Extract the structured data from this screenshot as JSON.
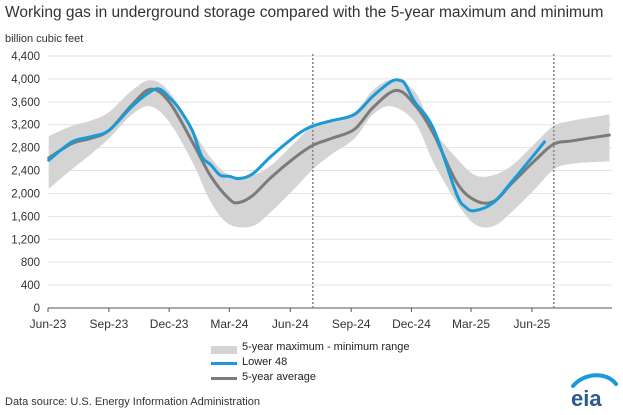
{
  "chart_data": {
    "type": "area",
    "title": "Working gas in underground  storage compared with the 5-year maximum and minimum",
    "ylabel": "billion cubic feet",
    "ylim": [
      0,
      4400
    ],
    "yticks": [
      0,
      400,
      800,
      1200,
      1600,
      2000,
      2400,
      2800,
      3200,
      3600,
      4000,
      4400
    ],
    "ytick_labels": [
      "0",
      "400",
      "800",
      "1,200",
      "1,600",
      "2,000",
      "2,400",
      "2,800",
      "3,200",
      "3,600",
      "4,000",
      "4,400"
    ],
    "xlim": [
      "2023-06-01",
      "2025-09-30"
    ],
    "xticks": [
      "2023-06-01",
      "2023-09-01",
      "2023-12-01",
      "2024-03-01",
      "2024-06-01",
      "2024-09-01",
      "2024-12-01",
      "2025-03-01",
      "2025-06-01"
    ],
    "xtick_labels": [
      "Jun-23",
      "Sep-23",
      "Dec-23",
      "Mar-24",
      "Jun-24",
      "Sep-24",
      "Dec-24",
      "Mar-25",
      "Jun-25"
    ],
    "grid": "horizontal",
    "legend_position": "bottom-center",
    "dashed_markers": [
      "2024-07-05",
      "2025-07-04"
    ],
    "series": [
      {
        "name": "5-year maximum - minimum range",
        "kind": "band",
        "color": "#d4d4d4",
        "points": [
          {
            "date": "2023-06-02",
            "low": 2080,
            "high": 3000
          },
          {
            "date": "2023-07-07",
            "low": 2420,
            "high": 3180
          },
          {
            "date": "2023-08-04",
            "low": 2680,
            "high": 3270
          },
          {
            "date": "2023-09-01",
            "low": 2960,
            "high": 3420
          },
          {
            "date": "2023-10-06",
            "low": 3380,
            "high": 3800
          },
          {
            "date": "2023-11-03",
            "low": 3520,
            "high": 3980
          },
          {
            "date": "2023-12-01",
            "low": 3250,
            "high": 3780
          },
          {
            "date": "2024-01-05",
            "low": 2550,
            "high": 3120
          },
          {
            "date": "2024-02-02",
            "low": 1850,
            "high": 2620
          },
          {
            "date": "2024-03-01",
            "low": 1460,
            "high": 2320
          },
          {
            "date": "2024-04-05",
            "low": 1430,
            "high": 2320
          },
          {
            "date": "2024-05-03",
            "low": 1680,
            "high": 2490
          },
          {
            "date": "2024-06-07",
            "low": 2080,
            "high": 2880
          },
          {
            "date": "2024-07-05",
            "low": 2420,
            "high": 3180
          },
          {
            "date": "2024-08-02",
            "low": 2680,
            "high": 3270
          },
          {
            "date": "2024-09-06",
            "low": 2960,
            "high": 3420
          },
          {
            "date": "2024-10-04",
            "low": 3380,
            "high": 3800
          },
          {
            "date": "2024-11-01",
            "low": 3520,
            "high": 3980
          },
          {
            "date": "2024-12-06",
            "low": 3250,
            "high": 3780
          },
          {
            "date": "2025-01-03",
            "low": 2550,
            "high": 3120
          },
          {
            "date": "2025-02-07",
            "low": 1850,
            "high": 2620
          },
          {
            "date": "2025-03-07",
            "low": 1460,
            "high": 2320
          },
          {
            "date": "2025-04-04",
            "low": 1430,
            "high": 2320
          },
          {
            "date": "2025-05-02",
            "low": 1680,
            "high": 2490
          },
          {
            "date": "2025-06-06",
            "low": 2080,
            "high": 2880
          },
          {
            "date": "2025-07-04",
            "low": 2420,
            "high": 3180
          },
          {
            "date": "2025-08-01",
            "low": 2520,
            "high": 3270
          },
          {
            "date": "2025-09-26",
            "low": 2560,
            "high": 3380
          }
        ]
      },
      {
        "name": "Lower 48",
        "kind": "line",
        "color": "#1a9ad6",
        "points": [
          {
            "date": "2023-06-02",
            "value": 2580
          },
          {
            "date": "2023-07-07",
            "value": 2900
          },
          {
            "date": "2023-08-04",
            "value": 2990
          },
          {
            "date": "2023-09-01",
            "value": 3100
          },
          {
            "date": "2023-10-06",
            "value": 3520
          },
          {
            "date": "2023-11-03",
            "value": 3780
          },
          {
            "date": "2023-11-17",
            "value": 3820
          },
          {
            "date": "2023-12-01",
            "value": 3680
          },
          {
            "date": "2023-12-15",
            "value": 3500
          },
          {
            "date": "2024-01-05",
            "value": 3100
          },
          {
            "date": "2024-01-19",
            "value": 2650
          },
          {
            "date": "2024-02-02",
            "value": 2500
          },
          {
            "date": "2024-02-16",
            "value": 2320
          },
          {
            "date": "2024-03-01",
            "value": 2300
          },
          {
            "date": "2024-03-15",
            "value": 2260
          },
          {
            "date": "2024-04-05",
            "value": 2340
          },
          {
            "date": "2024-05-03",
            "value": 2650
          },
          {
            "date": "2024-06-07",
            "value": 2990
          },
          {
            "date": "2024-06-21",
            "value": 3100
          },
          {
            "date": "2024-07-05",
            "value": 3180
          },
          {
            "date": "2024-08-02",
            "value": 3270
          },
          {
            "date": "2024-09-06",
            "value": 3380
          },
          {
            "date": "2024-10-04",
            "value": 3700
          },
          {
            "date": "2024-11-01",
            "value": 3960
          },
          {
            "date": "2024-11-15",
            "value": 3970
          },
          {
            "date": "2024-11-22",
            "value": 3900
          },
          {
            "date": "2024-12-06",
            "value": 3600
          },
          {
            "date": "2025-01-03",
            "value": 3140
          },
          {
            "date": "2025-02-07",
            "value": 2000
          },
          {
            "date": "2025-02-21",
            "value": 1760
          },
          {
            "date": "2025-03-07",
            "value": 1700
          },
          {
            "date": "2025-04-04",
            "value": 1840
          },
          {
            "date": "2025-05-02",
            "value": 2210
          },
          {
            "date": "2025-06-06",
            "value": 2700
          },
          {
            "date": "2025-06-20",
            "value": 2900
          }
        ]
      },
      {
        "name": "5-year average",
        "kind": "line",
        "color": "#7b7b7b",
        "points": [
          {
            "date": "2023-06-02",
            "value": 2620
          },
          {
            "date": "2023-07-07",
            "value": 2870
          },
          {
            "date": "2023-08-04",
            "value": 2960
          },
          {
            "date": "2023-09-01",
            "value": 3100
          },
          {
            "date": "2023-10-06",
            "value": 3550
          },
          {
            "date": "2023-11-03",
            "value": 3820
          },
          {
            "date": "2023-12-01",
            "value": 3600
          },
          {
            "date": "2024-01-05",
            "value": 2900
          },
          {
            "date": "2024-02-02",
            "value": 2300
          },
          {
            "date": "2024-03-01",
            "value": 1900
          },
          {
            "date": "2024-03-15",
            "value": 1840
          },
          {
            "date": "2024-04-05",
            "value": 1960
          },
          {
            "date": "2024-05-03",
            "value": 2280
          },
          {
            "date": "2024-06-07",
            "value": 2620
          },
          {
            "date": "2024-07-05",
            "value": 2840
          },
          {
            "date": "2024-08-02",
            "value": 2960
          },
          {
            "date": "2024-09-06",
            "value": 3120
          },
          {
            "date": "2024-10-04",
            "value": 3500
          },
          {
            "date": "2024-11-08",
            "value": 3800
          },
          {
            "date": "2024-12-06",
            "value": 3550
          },
          {
            "date": "2025-01-03",
            "value": 3050
          },
          {
            "date": "2025-02-07",
            "value": 2200
          },
          {
            "date": "2025-03-07",
            "value": 1880
          },
          {
            "date": "2025-04-04",
            "value": 1860
          },
          {
            "date": "2025-05-02",
            "value": 2180
          },
          {
            "date": "2025-06-06",
            "value": 2580
          },
          {
            "date": "2025-07-04",
            "value": 2860
          },
          {
            "date": "2025-08-01",
            "value": 2920
          },
          {
            "date": "2025-09-26",
            "value": 3020
          }
        ]
      }
    ]
  },
  "footer": {
    "source": "Data source:  U.S. Energy Information Administration",
    "logo_text": "eia"
  }
}
